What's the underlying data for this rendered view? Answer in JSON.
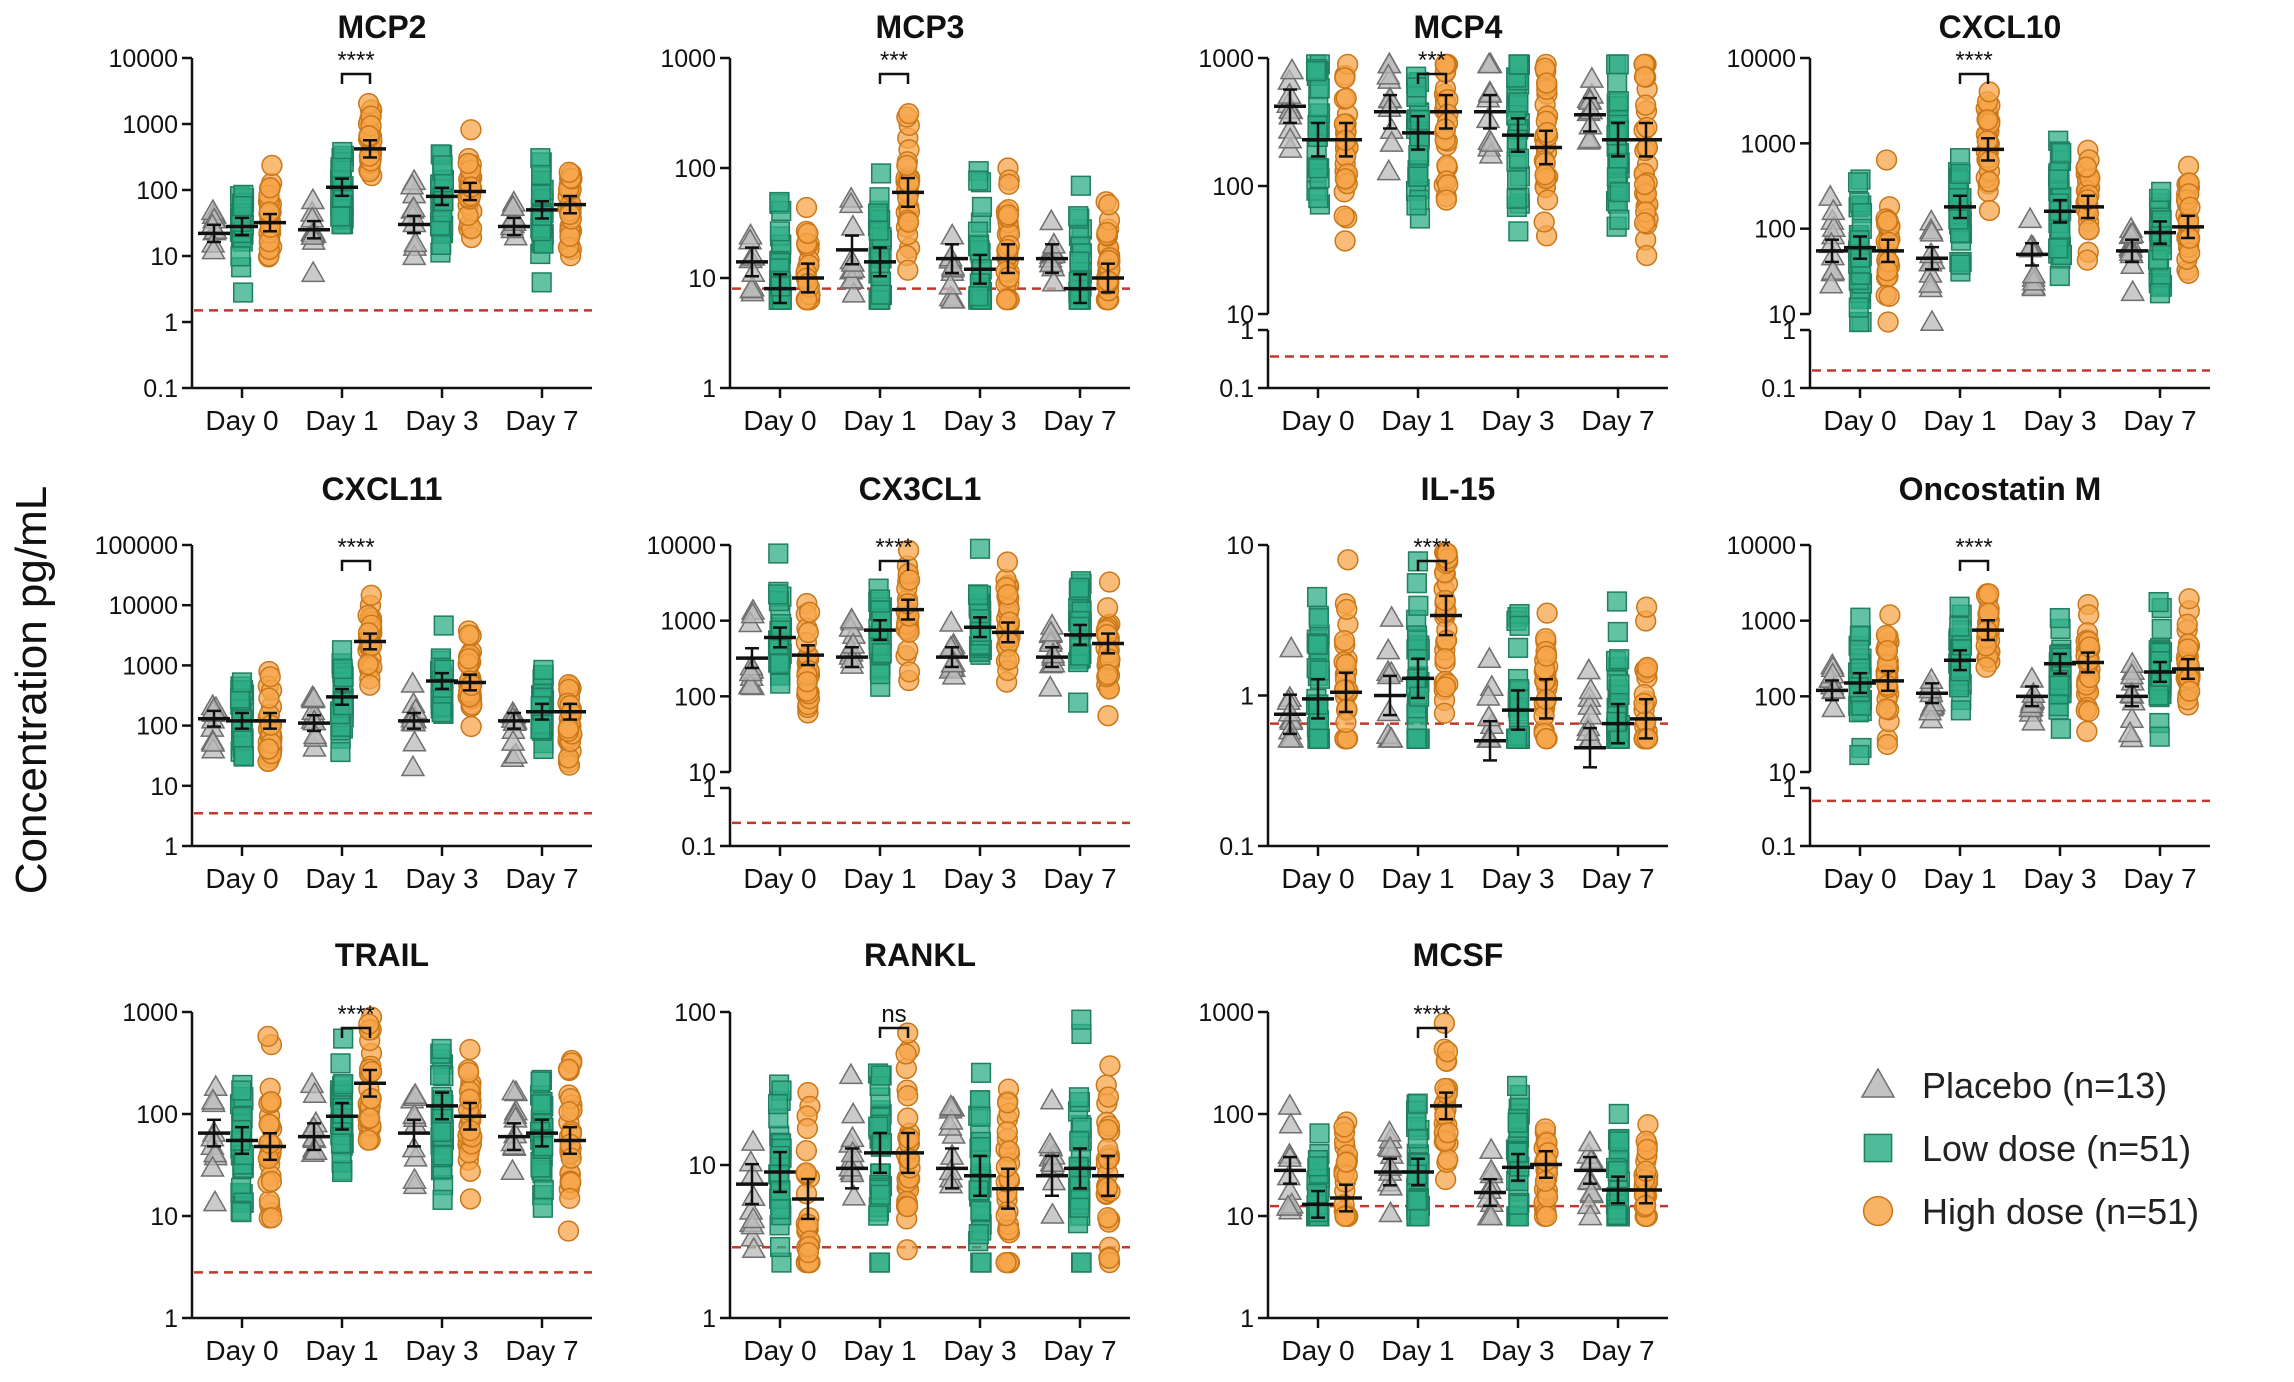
{
  "figure": {
    "ylabel": "Concentration pg/mL"
  },
  "colors": {
    "placebo": "#b9b9b9",
    "placebo_stroke": "#6f6f6f",
    "low": "#2fae86",
    "low_stroke": "#1f7f60",
    "high": "#f7a64b",
    "high_stroke": "#c97718",
    "lod_line": "#c0392b",
    "axis": "#111111"
  },
  "legend": [
    {
      "group": "placebo",
      "label": "Placebo (n=13)",
      "shape": "triangle"
    },
    {
      "group": "low",
      "label": "Low dose (n=51)",
      "shape": "square"
    },
    {
      "group": "high",
      "label": "High dose (n=51)",
      "shape": "circle"
    }
  ],
  "chart_data": [
    {
      "type": "scatter",
      "scale": "log",
      "title": "MCP2",
      "categories": [
        "Day 0",
        "Day 1",
        "Day 3",
        "Day 7"
      ],
      "ylim": [
        0.1,
        10000
      ],
      "yticks": [
        "0.1",
        "1",
        "10",
        "100",
        "1000",
        "10000"
      ],
      "axis_break": null,
      "lod": 1.5,
      "series": [
        {
          "name": "Placebo",
          "means": [
            22,
            25,
            30,
            28
          ]
        },
        {
          "name": "Low dose",
          "means": [
            28,
            110,
            80,
            50
          ]
        },
        {
          "name": "High dose",
          "means": [
            32,
            420,
            95,
            60
          ]
        }
      ],
      "significance": {
        "category": "Day 1",
        "label": "****"
      }
    },
    {
      "type": "scatter",
      "scale": "log",
      "title": "MCP3",
      "categories": [
        "Day 0",
        "Day 1",
        "Day 3",
        "Day 7"
      ],
      "ylim": [
        1,
        1000
      ],
      "yticks": [
        "1",
        "10",
        "100",
        "1000"
      ],
      "axis_break": null,
      "lod": 8,
      "series": [
        {
          "name": "Placebo",
          "means": [
            14,
            18,
            15,
            15
          ]
        },
        {
          "name": "Low dose",
          "means": [
            8,
            14,
            12,
            8
          ]
        },
        {
          "name": "High dose",
          "means": [
            10,
            60,
            15,
            10
          ]
        }
      ],
      "significance": {
        "category": "Day 1",
        "label": "***"
      }
    },
    {
      "type": "scatter",
      "scale": "log",
      "title": "MCP4",
      "categories": [
        "Day 0",
        "Day 1",
        "Day 3",
        "Day 7"
      ],
      "ylim": [
        0.1,
        1000
      ],
      "yticks": [
        "0.1",
        "1",
        "10",
        "100",
        "1000"
      ],
      "axis_break": [
        1,
        10
      ],
      "lod": 0.35,
      "series": [
        {
          "name": "Placebo",
          "means": [
            420,
            380,
            380,
            360
          ]
        },
        {
          "name": "Low dose",
          "means": [
            230,
            260,
            250,
            230
          ]
        },
        {
          "name": "High dose",
          "means": [
            230,
            380,
            200,
            230
          ]
        }
      ],
      "significance": {
        "category": "Day 1",
        "label": "***"
      }
    },
    {
      "type": "scatter",
      "scale": "log",
      "title": "CXCL10",
      "categories": [
        "Day 0",
        "Day 1",
        "Day 3",
        "Day 7"
      ],
      "ylim": [
        0.1,
        10000
      ],
      "yticks": [
        "0.1",
        "1",
        "10",
        "100",
        "1000",
        "10000"
      ],
      "axis_break": [
        1,
        10
      ],
      "lod": 0.2,
      "series": [
        {
          "name": "Placebo",
          "means": [
            55,
            45,
            50,
            55
          ]
        },
        {
          "name": "Low dose",
          "means": [
            60,
            180,
            160,
            90
          ]
        },
        {
          "name": "High dose",
          "means": [
            55,
            850,
            180,
            105
          ]
        }
      ],
      "significance": {
        "category": "Day 1",
        "label": "****"
      }
    },
    {
      "type": "scatter",
      "scale": "log",
      "title": "CXCL11",
      "categories": [
        "Day 0",
        "Day 1",
        "Day 3",
        "Day 7"
      ],
      "ylim": [
        1,
        100000
      ],
      "yticks": [
        "1",
        "10",
        "100",
        "1000",
        "10000",
        "100000"
      ],
      "axis_break": null,
      "lod": 3.5,
      "series": [
        {
          "name": "Placebo",
          "means": [
            130,
            110,
            120,
            120
          ]
        },
        {
          "name": "Low dose",
          "means": [
            120,
            300,
            550,
            170
          ]
        },
        {
          "name": "High dose",
          "means": [
            120,
            2500,
            520,
            170
          ]
        }
      ],
      "significance": {
        "category": "Day 1",
        "label": "****"
      }
    },
    {
      "type": "scatter",
      "scale": "log",
      "title": "CX3CL1",
      "categories": [
        "Day 0",
        "Day 1",
        "Day 3",
        "Day 7"
      ],
      "ylim": [
        0.1,
        10000
      ],
      "yticks": [
        "0.1",
        "1",
        "10",
        "100",
        "1000",
        "10000"
      ],
      "axis_break": [
        1,
        10
      ],
      "lod": 0.25,
      "series": [
        {
          "name": "Placebo",
          "means": [
            320,
            330,
            330,
            330
          ]
        },
        {
          "name": "Low dose",
          "means": [
            600,
            750,
            820,
            650
          ]
        },
        {
          "name": "High dose",
          "means": [
            350,
            1400,
            700,
            500
          ]
        }
      ],
      "significance": {
        "category": "Day 1",
        "label": "****"
      }
    },
    {
      "type": "scatter",
      "scale": "log",
      "title": "IL-15",
      "categories": [
        "Day 0",
        "Day 1",
        "Day 3",
        "Day 7"
      ],
      "ylim": [
        0.1,
        10
      ],
      "yticks": [
        "0.1",
        "1",
        "10"
      ],
      "axis_break": null,
      "lod": 0.65,
      "series": [
        {
          "name": "Placebo",
          "means": [
            0.75,
            1.0,
            0.5,
            0.45
          ]
        },
        {
          "name": "Low dose",
          "means": [
            0.95,
            1.3,
            0.8,
            0.65
          ]
        },
        {
          "name": "High dose",
          "means": [
            1.05,
            3.4,
            0.95,
            0.7
          ]
        }
      ],
      "significance": {
        "category": "Day 1",
        "label": "****"
      }
    },
    {
      "type": "scatter",
      "scale": "log",
      "title": "Oncostatin M",
      "categories": [
        "Day 0",
        "Day 1",
        "Day 3",
        "Day 7"
      ],
      "ylim": [
        0.1,
        10000
      ],
      "yticks": [
        "0.1",
        "1",
        "10",
        "100",
        "1000",
        "10000"
      ],
      "axis_break": [
        1,
        10
      ],
      "lod": 0.6,
      "series": [
        {
          "name": "Placebo",
          "means": [
            120,
            110,
            100,
            100
          ]
        },
        {
          "name": "Low dose",
          "means": [
            150,
            300,
            270,
            210
          ]
        },
        {
          "name": "High dose",
          "means": [
            160,
            750,
            280,
            230
          ]
        }
      ],
      "significance": {
        "category": "Day 1",
        "label": "****"
      }
    },
    {
      "type": "scatter",
      "scale": "log",
      "title": "TRAIL",
      "categories": [
        "Day 0",
        "Day 1",
        "Day 3",
        "Day 7"
      ],
      "ylim": [
        1,
        1000
      ],
      "yticks": [
        "1",
        "10",
        "100",
        "1000"
      ],
      "axis_break": null,
      "lod": 2.8,
      "series": [
        {
          "name": "Placebo",
          "means": [
            65,
            60,
            65,
            60
          ]
        },
        {
          "name": "Low dose",
          "means": [
            55,
            95,
            120,
            65
          ]
        },
        {
          "name": "High dose",
          "means": [
            48,
            200,
            95,
            55
          ]
        }
      ],
      "significance": {
        "category": "Day 1",
        "label": "****"
      }
    },
    {
      "type": "scatter",
      "scale": "log",
      "title": "RANKL",
      "categories": [
        "Day 0",
        "Day 1",
        "Day 3",
        "Day 7"
      ],
      "ylim": [
        1,
        100
      ],
      "yticks": [
        "1",
        "10",
        "100"
      ],
      "axis_break": null,
      "lod": 2.9,
      "series": [
        {
          "name": "Placebo",
          "means": [
            7.5,
            9.5,
            9.5,
            8.5
          ]
        },
        {
          "name": "Low dose",
          "means": [
            9,
            12,
            8.5,
            9.5
          ]
        },
        {
          "name": "High dose",
          "means": [
            6,
            12,
            7,
            8.5
          ]
        }
      ],
      "significance": {
        "category": "Day 1",
        "label": "ns"
      }
    },
    {
      "type": "scatter",
      "scale": "log",
      "title": "MCSF",
      "categories": [
        "Day 0",
        "Day 1",
        "Day 3",
        "Day 7"
      ],
      "ylim": [
        1,
        1000
      ],
      "yticks": [
        "1",
        "10",
        "100",
        "1000"
      ],
      "axis_break": null,
      "lod": 12.5,
      "series": [
        {
          "name": "Placebo",
          "means": [
            28,
            27,
            17,
            28
          ]
        },
        {
          "name": "Low dose",
          "means": [
            13,
            27,
            30,
            18
          ]
        },
        {
          "name": "High dose",
          "means": [
            15,
            120,
            32,
            18
          ]
        }
      ],
      "significance": {
        "category": "Day 1",
        "label": "****"
      }
    }
  ]
}
